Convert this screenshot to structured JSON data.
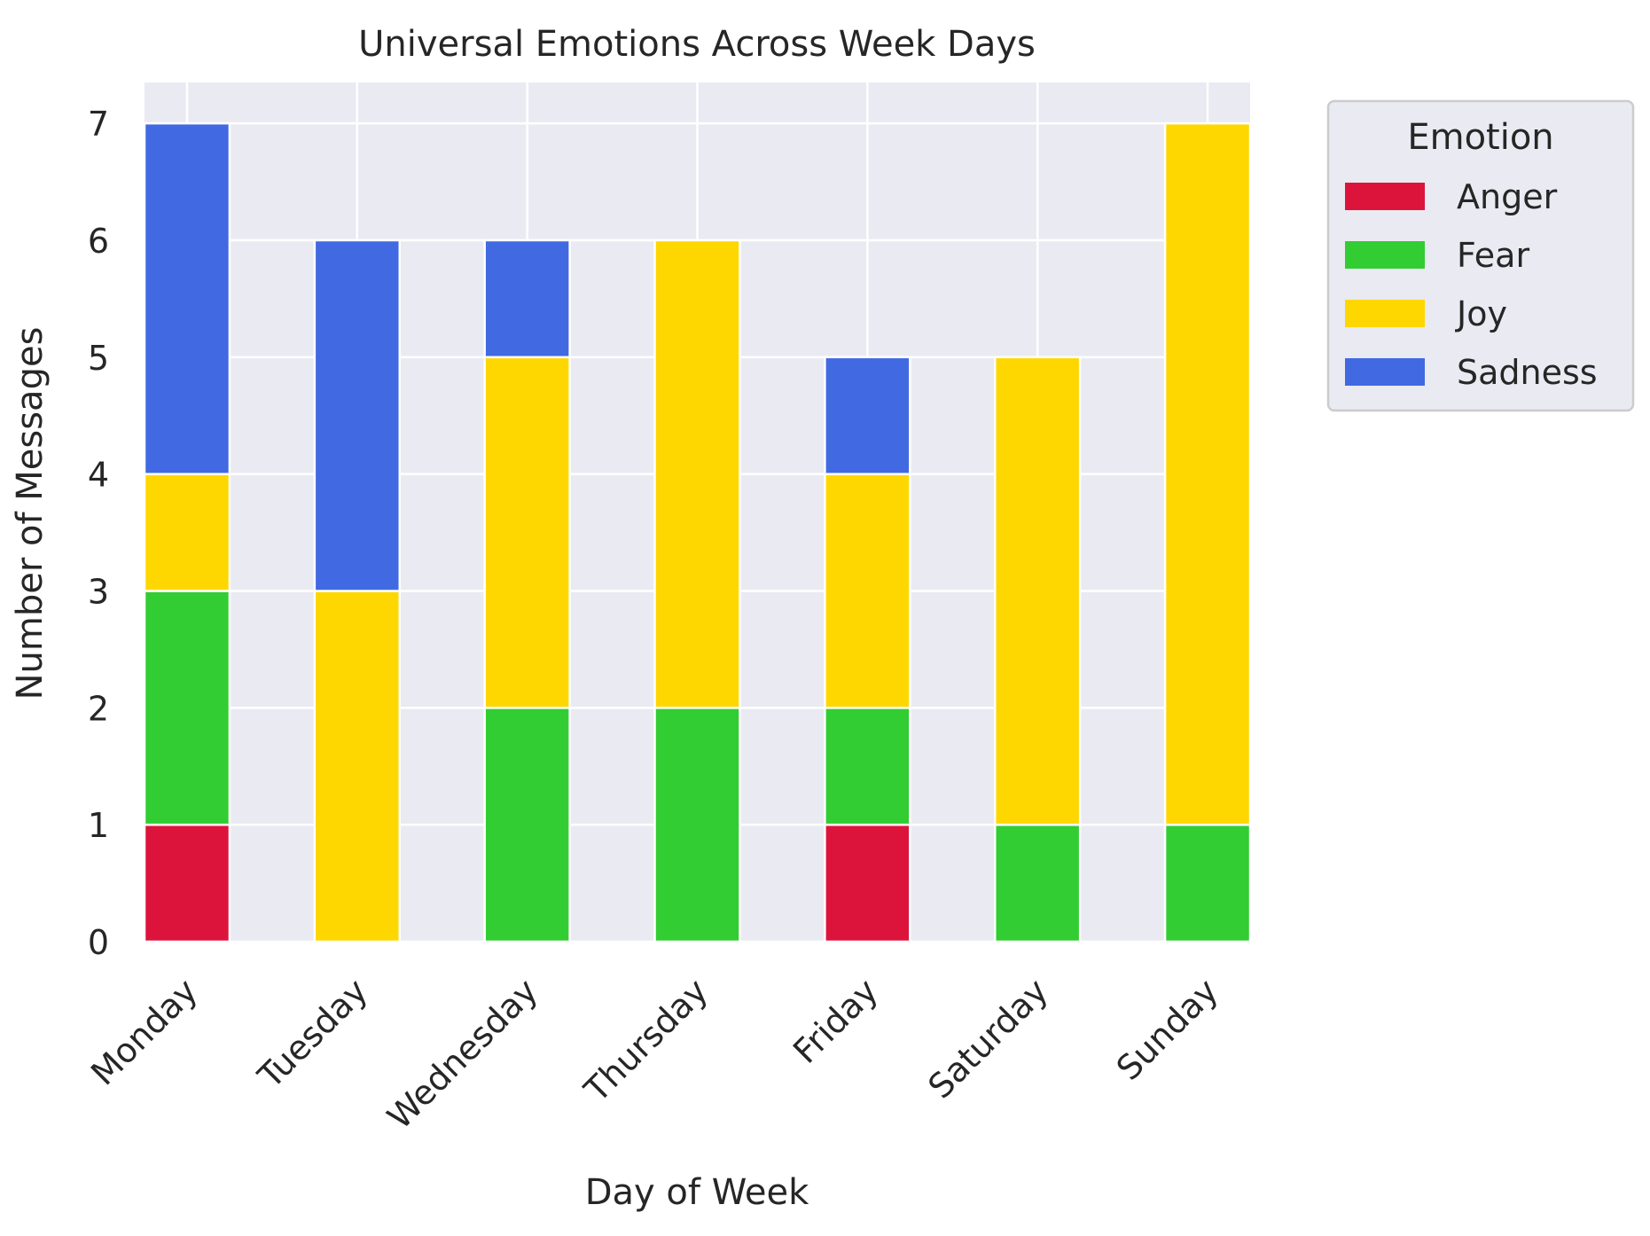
{
  "chart_data": {
    "type": "bar",
    "stacked": true,
    "title": "Universal Emotions Across Week Days",
    "xlabel": "Day of Week",
    "ylabel": "Number of Messages",
    "categories": [
      "Monday",
      "Tuesday",
      "Wednesday",
      "Thursday",
      "Friday",
      "Saturday",
      "Sunday"
    ],
    "series": [
      {
        "name": "Anger",
        "color": "#dc143c",
        "values": [
          1,
          0,
          0,
          0,
          1,
          0,
          0
        ]
      },
      {
        "name": "Fear",
        "color": "#32cd32",
        "values": [
          2,
          0,
          2,
          2,
          1,
          1,
          1
        ]
      },
      {
        "name": "Joy",
        "color": "#ffd700",
        "values": [
          1,
          3,
          3,
          4,
          2,
          4,
          6
        ]
      },
      {
        "name": "Sadness",
        "color": "#4169e1",
        "values": [
          3,
          3,
          1,
          0,
          1,
          0,
          0
        ]
      }
    ],
    "yticks": [
      "0",
      "1",
      "2",
      "3",
      "4",
      "5",
      "6",
      "7"
    ],
    "ylim": [
      0,
      7.35
    ],
    "grid": true,
    "legend": {
      "title": "Emotion",
      "placement": "outside-top-right"
    },
    "colors": {
      "plot_background": "#eaeaf2",
      "grid": "#ffffff",
      "text": "#262626"
    }
  }
}
